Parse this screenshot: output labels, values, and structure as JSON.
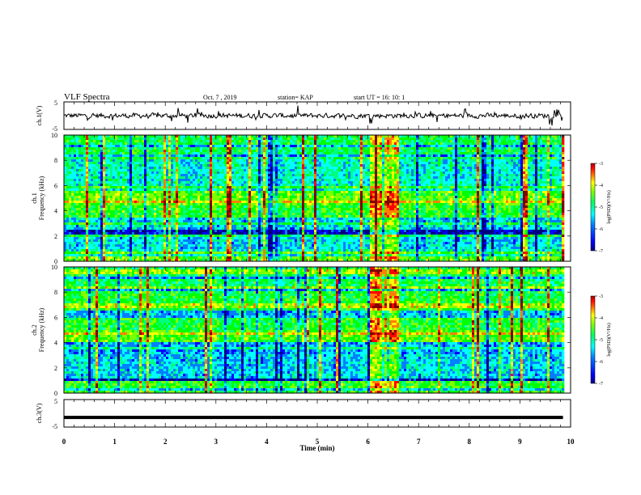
{
  "header": {
    "title": "VLF Spectra",
    "date": "Oct. 7 , 2019",
    "station": "station= KAP",
    "start_ut": "start  UT =   16: 10: 1"
  },
  "chart_data": [
    {
      "id": "ch1_waveform",
      "type": "line",
      "ylabel": "ch.1(V)",
      "ylim": [
        -5,
        5
      ],
      "ytick_labels": [
        "5",
        "-5"
      ],
      "xlim": [
        0,
        10
      ]
    },
    {
      "id": "ch1_spectrogram",
      "type": "heatmap",
      "ylabel_line1": "ch.1",
      "ylabel_line2": "Frequency (kHz)",
      "ylim": [
        0,
        10
      ],
      "ytick_labels": [
        "0",
        "2",
        "4",
        "6",
        "8",
        "10"
      ],
      "xlim": [
        0,
        10
      ],
      "data_end_min": 9.85,
      "bursts_min": [
        6.0,
        6.6
      ],
      "colorbar": {
        "label": "log(PSD)(V²/Hz)",
        "range": [
          -7,
          -3
        ],
        "tick_labels": [
          "-3",
          "-4",
          "-5",
          "-6",
          "-7"
        ]
      }
    },
    {
      "id": "ch2_spectrogram",
      "type": "heatmap",
      "ylabel_line1": "ch.2",
      "ylabel_line2": "Frequency (kHz)",
      "ylim": [
        0,
        10
      ],
      "ytick_labels": [
        "0",
        "2",
        "4",
        "6",
        "8",
        "10"
      ],
      "xlim": [
        0,
        10
      ],
      "data_end_min": 9.85,
      "bursts_min": [
        6.0,
        6.6
      ],
      "colorbar": {
        "label": "log(PSD)(V²/Hz)",
        "range": [
          -7,
          -3
        ],
        "tick_labels": [
          "-3",
          "-4",
          "-5",
          "-6",
          "-7"
        ]
      }
    },
    {
      "id": "ch3_waveform",
      "type": "line",
      "ylabel": "ch.3(V)",
      "ylim": [
        -5,
        5
      ],
      "ytick_labels": [
        "5",
        "-5"
      ],
      "xlim": [
        0,
        10
      ],
      "constant_value": -1.5
    }
  ],
  "x_axis": {
    "label": "Time  (min)",
    "tick_labels": [
      "0",
      "1",
      "2",
      "3",
      "4",
      "5",
      "6",
      "7",
      "8",
      "9",
      "10"
    ]
  },
  "colormap": [
    "#000080",
    "#0000ff",
    "#0080ff",
    "#00ffff",
    "#00ff80",
    "#00ff00",
    "#80ff00",
    "#ffff00",
    "#ff8000",
    "#ff0000",
    "#800000"
  ]
}
